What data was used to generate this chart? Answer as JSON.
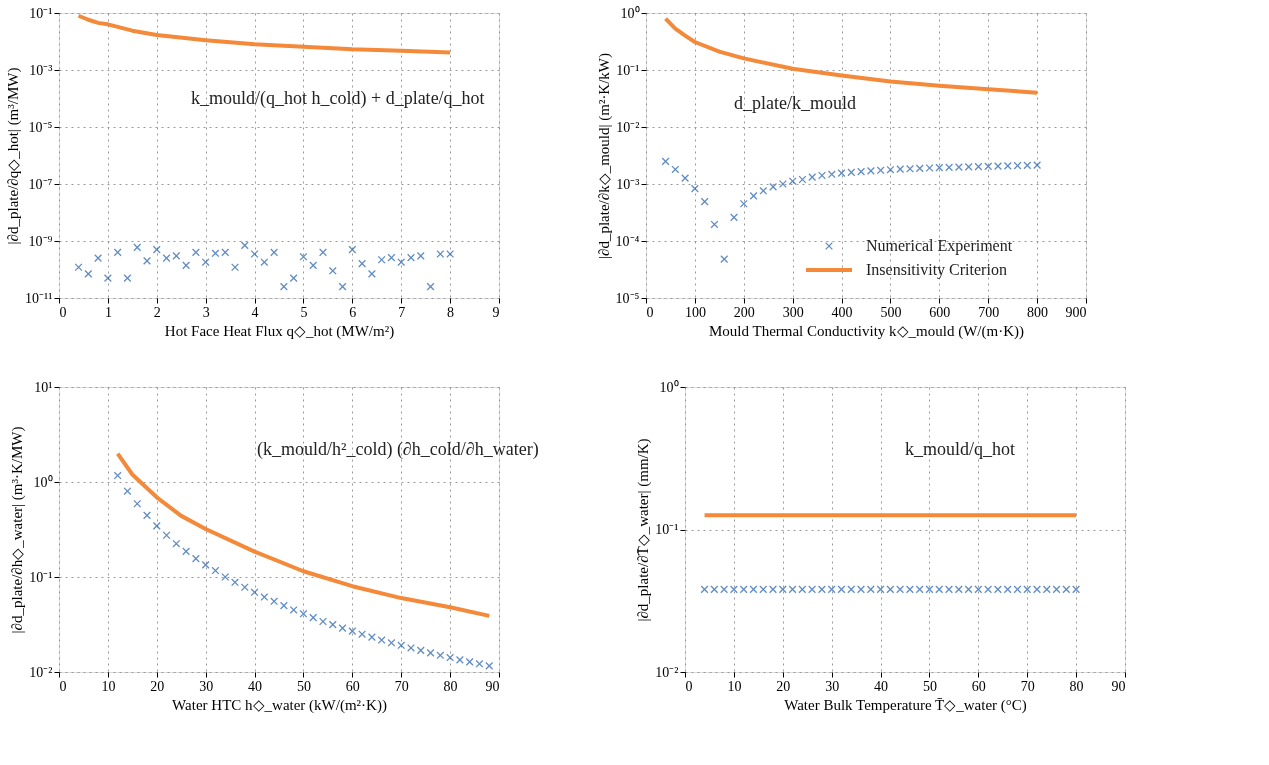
{
  "chart_data": [
    {
      "type": "scatter",
      "log": "y",
      "grid": true,
      "xlabel": "Hot Face Heat Flux q◇_hot (MW/m²)",
      "ylabel": "|∂d_plate/∂q◇_hot| (m³/MW)",
      "xlim": [
        0,
        9
      ],
      "xticks": [
        0,
        1,
        2,
        3,
        4,
        5,
        6,
        7,
        8,
        9
      ],
      "ylim": [
        1e-11,
        0.1
      ],
      "yticks": [
        {
          "value": 1e-11,
          "label": "10⁻¹¹"
        },
        {
          "value": 1e-09,
          "label": "10⁻⁹"
        },
        {
          "value": 1e-07,
          "label": "10⁻⁷"
        },
        {
          "value": 1e-05,
          "label": "10⁻⁵"
        },
        {
          "value": 0.001,
          "label": "10⁻³"
        },
        {
          "value": 0.1,
          "label": "10⁻¹"
        }
      ],
      "annotations": [
        "k_mould/(q_hot h_cold) + d_plate/q_hot"
      ],
      "series": [
        {
          "marker": "cross",
          "color": "#1f5ca8",
          "x": [
            0.4,
            0.6,
            0.8,
            1.0,
            1.2,
            1.4,
            1.6,
            1.8,
            2.0,
            2.2,
            2.4,
            2.6,
            2.8,
            3.0,
            3.2,
            3.4,
            3.6,
            3.8,
            4.0,
            4.2,
            4.4,
            4.6,
            4.8,
            5.0,
            5.2,
            5.4,
            5.6,
            5.8,
            6.0,
            6.2,
            6.4,
            6.6,
            6.8,
            7.0,
            7.2,
            7.4,
            7.6,
            7.8,
            8.0
          ],
          "values": [
            1.2e-10,
            7e-11,
            2.5e-10,
            5e-11,
            4e-10,
            5e-11,
            6e-10,
            2e-10,
            5e-10,
            2.5e-10,
            3e-10,
            1.4e-10,
            4e-10,
            1.8e-10,
            3.7e-10,
            4e-10,
            1.2e-10,
            7e-10,
            3.5e-10,
            1.8e-10,
            4e-10,
            2.5e-11,
            5e-11,
            2.8e-10,
            1.4e-10,
            4e-10,
            9e-11,
            2.5e-11,
            5e-10,
            1.6e-10,
            7e-11,
            2.2e-10,
            2.6e-10,
            1.8e-10,
            2.6e-10,
            3e-10,
            2.5e-11,
            3.5e-10,
            3.5e-10
          ]
        },
        {
          "type": "line",
          "line_style": "solid",
          "color": "#f4893a",
          "x": [
            0.4,
            0.6,
            0.8,
            1,
            1.5,
            2,
            3,
            4,
            5,
            6,
            7,
            8
          ],
          "values": [
            0.08,
            0.058,
            0.045,
            0.04,
            0.024,
            0.017,
            0.011,
            0.008,
            0.0066,
            0.0053,
            0.0047,
            0.0041
          ]
        }
      ]
    },
    {
      "type": "scatter",
      "log": "y",
      "grid": true,
      "legend": "bottom right",
      "xlabel": "Mould Thermal Conductivity k◇_mould (W/(m·K))",
      "ylabel": "|∂d_plate/∂k◇_mould| (m²·K/kW)",
      "xlim": [
        0,
        900
      ],
      "xticks": [
        0,
        100,
        200,
        300,
        400,
        500,
        600,
        700,
        800,
        900
      ],
      "ylim": [
        1e-05,
        1
      ],
      "yticks": [
        {
          "value": 1e-05,
          "label": "10⁻⁵"
        },
        {
          "value": 0.0001,
          "label": "10⁻⁴"
        },
        {
          "value": 0.001,
          "label": "10⁻³"
        },
        {
          "value": 0.01,
          "label": "10⁻²"
        },
        {
          "value": 0.1,
          "label": "10⁻¹"
        },
        {
          "value": 1,
          "label": "10⁰"
        }
      ],
      "annotations": [
        "d_plate/k_mould"
      ],
      "series": [
        {
          "name": "Numerical Experiment",
          "marker": "cross",
          "color": "#1f5ca8",
          "x": [
            40,
            60,
            80,
            100,
            120,
            140,
            160,
            180,
            200,
            220,
            240,
            260,
            280,
            300,
            320,
            340,
            360,
            380,
            400,
            420,
            440,
            460,
            480,
            500,
            520,
            540,
            560,
            580,
            600,
            620,
            640,
            660,
            680,
            700,
            720,
            740,
            760,
            780,
            800
          ],
          "values": [
            0.0025,
            0.0018,
            0.00127,
            0.00083,
            0.00049,
            0.000195,
            4.8e-05,
            0.00026,
            0.00045,
            0.00062,
            0.00076,
            0.00089,
            0.001,
            0.00112,
            0.0012,
            0.00132,
            0.00141,
            0.00148,
            0.00155,
            0.0016,
            0.00165,
            0.0017,
            0.00174,
            0.00178,
            0.00182,
            0.00185,
            0.00188,
            0.00191,
            0.00194,
            0.00196,
            0.00198,
            0.002,
            0.00202,
            0.00204,
            0.00206,
            0.00208,
            0.0021,
            0.00212,
            0.00214
          ]
        },
        {
          "type": "line",
          "name": "Insensitivity Criterion",
          "line_style": "solid",
          "color": "#f4893a",
          "x": [
            40,
            60,
            80,
            100,
            150,
            200,
            300,
            400,
            500,
            600,
            700,
            800
          ],
          "values": [
            0.8,
            0.53,
            0.4,
            0.31,
            0.21,
            0.16,
            0.105,
            0.08,
            0.063,
            0.053,
            0.046,
            0.04
          ]
        }
      ]
    },
    {
      "type": "scatter",
      "log": "y",
      "grid": true,
      "xlabel": "Water HTC h◇_water (kW/(m²·K))",
      "ylabel": "|∂d_plate/∂h◇_water| (m³·K/MW)",
      "xlim": [
        0,
        90
      ],
      "xticks": [
        0,
        10,
        20,
        30,
        40,
        50,
        60,
        70,
        80,
        90
      ],
      "ylim": [
        0.01,
        10
      ],
      "yticks": [
        {
          "value": 0.01,
          "label": "10⁻²"
        },
        {
          "value": 0.1,
          "label": "10⁻¹"
        },
        {
          "value": 1,
          "label": "10⁰"
        },
        {
          "value": 10,
          "label": "10¹"
        }
      ],
      "annotations": [
        "(k_mould/h²_cold) (∂h_cold/∂h_water)"
      ],
      "series": [
        {
          "marker": "cross",
          "color": "#1f5ca8",
          "x": [
            12,
            14,
            16,
            18,
            20,
            22,
            24,
            26,
            28,
            30,
            32,
            34,
            36,
            38,
            40,
            42,
            44,
            46,
            48,
            50,
            52,
            54,
            56,
            58,
            60,
            62,
            64,
            66,
            68,
            70,
            72,
            74,
            76,
            78,
            80,
            82,
            84,
            86,
            88
          ],
          "values": [
            1.17,
            0.8,
            0.59,
            0.445,
            0.345,
            0.275,
            0.224,
            0.186,
            0.156,
            0.134,
            0.117,
            0.1,
            0.088,
            0.078,
            0.069,
            0.0615,
            0.0555,
            0.05,
            0.045,
            0.041,
            0.0373,
            0.034,
            0.0315,
            0.029,
            0.0269,
            0.025,
            0.0233,
            0.0217,
            0.0203,
            0.0191,
            0.0179,
            0.0169,
            0.0159,
            0.015,
            0.0142,
            0.0134,
            0.0128,
            0.0122,
            0.0116
          ]
        },
        {
          "type": "line",
          "line_style": "solid",
          "color": "#f4893a",
          "x": [
            12,
            15,
            20,
            25,
            30,
            40,
            50,
            60,
            70,
            80,
            88
          ],
          "values": [
            1.99,
            1.2,
            0.69,
            0.44,
            0.32,
            0.185,
            0.115,
            0.08,
            0.06,
            0.048,
            0.039
          ]
        }
      ]
    },
    {
      "type": "scatter",
      "log": "y",
      "grid": true,
      "xlabel": "Water Bulk Temperature T̄◇_water (°C)",
      "ylabel": "|∂d_plate/∂T̄◇_water| (mm/K)",
      "xlim": [
        0,
        90
      ],
      "xticks": [
        0,
        10,
        20,
        30,
        40,
        50,
        60,
        70,
        80,
        90
      ],
      "ylim": [
        0.01,
        1
      ],
      "yticks": [
        {
          "value": 0.01,
          "label": "10⁻²"
        },
        {
          "value": 0.1,
          "label": "10⁻¹"
        },
        {
          "value": 1,
          "label": "10⁰"
        }
      ],
      "annotations": [
        "k_mould/q_hot"
      ],
      "series": [
        {
          "marker": "cross",
          "color": "#1f5ca8",
          "x": [
            4,
            6,
            8,
            10,
            12,
            14,
            16,
            18,
            20,
            22,
            24,
            26,
            28,
            30,
            32,
            34,
            36,
            38,
            40,
            42,
            44,
            46,
            48,
            50,
            52,
            54,
            56,
            58,
            60,
            62,
            64,
            66,
            68,
            70,
            72,
            74,
            76,
            78,
            80
          ],
          "values": [
            0.038,
            0.038,
            0.038,
            0.038,
            0.038,
            0.038,
            0.038,
            0.038,
            0.038,
            0.038,
            0.038,
            0.038,
            0.038,
            0.038,
            0.038,
            0.038,
            0.038,
            0.038,
            0.038,
            0.038,
            0.038,
            0.038,
            0.038,
            0.038,
            0.038,
            0.038,
            0.038,
            0.038,
            0.038,
            0.038,
            0.038,
            0.038,
            0.038,
            0.038,
            0.038,
            0.038,
            0.038,
            0.038,
            0.038
          ]
        },
        {
          "type": "line",
          "line_style": "solid",
          "color": "#f4893a",
          "x": [
            4,
            80
          ],
          "values": [
            0.126,
            0.126
          ]
        }
      ]
    }
  ]
}
